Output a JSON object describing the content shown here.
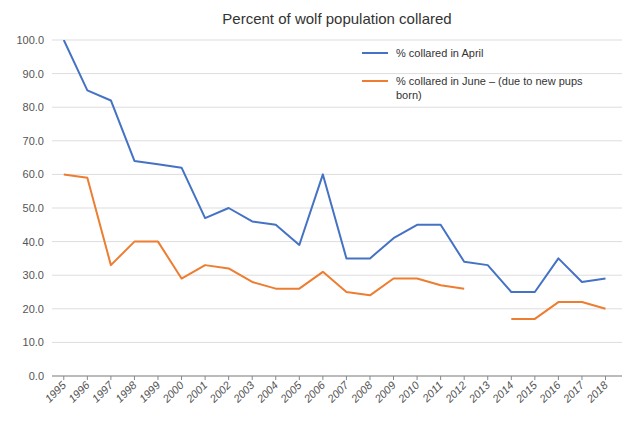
{
  "chart_data": {
    "type": "line",
    "title": "Percent of wolf population collared",
    "x": [
      1995,
      1996,
      1997,
      1998,
      1999,
      2000,
      2001,
      2002,
      2003,
      2004,
      2005,
      2006,
      2007,
      2008,
      2009,
      2010,
      2011,
      2012,
      2013,
      2014,
      2015,
      2016,
      2017,
      2018
    ],
    "series": [
      {
        "name": "% collared in April",
        "color": "#4472c4",
        "values": [
          100.0,
          85.0,
          82.0,
          64.0,
          63.0,
          62.0,
          47.0,
          50.0,
          46.0,
          45.0,
          39.0,
          60.0,
          35.0,
          35.0,
          41.0,
          45.0,
          45.0,
          34.0,
          33.0,
          25.0,
          25.0,
          35.0,
          28.0,
          29.0
        ]
      },
      {
        "name": "% collared in June – (due to new pups\nborn)",
        "color": "#ed7d31",
        "values": [
          60.0,
          59.0,
          33.0,
          40.0,
          40.0,
          29.0,
          33.0,
          32.0,
          28.0,
          26.0,
          26.0,
          31.0,
          25.0,
          24.0,
          29.0,
          29.0,
          27.0,
          26.0,
          null,
          17.0,
          17.0,
          22.0,
          22.0,
          20.0
        ]
      }
    ],
    "xlim": [
      1994.5,
      2018.7
    ],
    "xticks": [
      1995,
      1996,
      1997,
      1998,
      1999,
      2000,
      2001,
      2002,
      2003,
      2004,
      2005,
      2006,
      2007,
      2008,
      2009,
      2010,
      2011,
      2012,
      2013,
      2014,
      2015,
      2016,
      2017,
      2018
    ],
    "ylim": [
      0.0,
      100.0
    ],
    "yticks": [
      {
        "value": 0.0,
        "label": "0.0"
      },
      {
        "value": 10.0,
        "label": "10.0"
      },
      {
        "value": 20.0,
        "label": "20.0"
      },
      {
        "value": 30.0,
        "label": "30.0"
      },
      {
        "value": 40.0,
        "label": "40.0"
      },
      {
        "value": 50.0,
        "label": "50.0"
      },
      {
        "value": 60.0,
        "label": "60.0"
      },
      {
        "value": 70.0,
        "label": "70.0"
      },
      {
        "value": 80.0,
        "label": "80.0"
      },
      {
        "value": 90.0,
        "label": "90.0"
      },
      {
        "value": 100.0,
        "label": "100.0"
      }
    ],
    "grid": true,
    "legend": "upper right"
  }
}
